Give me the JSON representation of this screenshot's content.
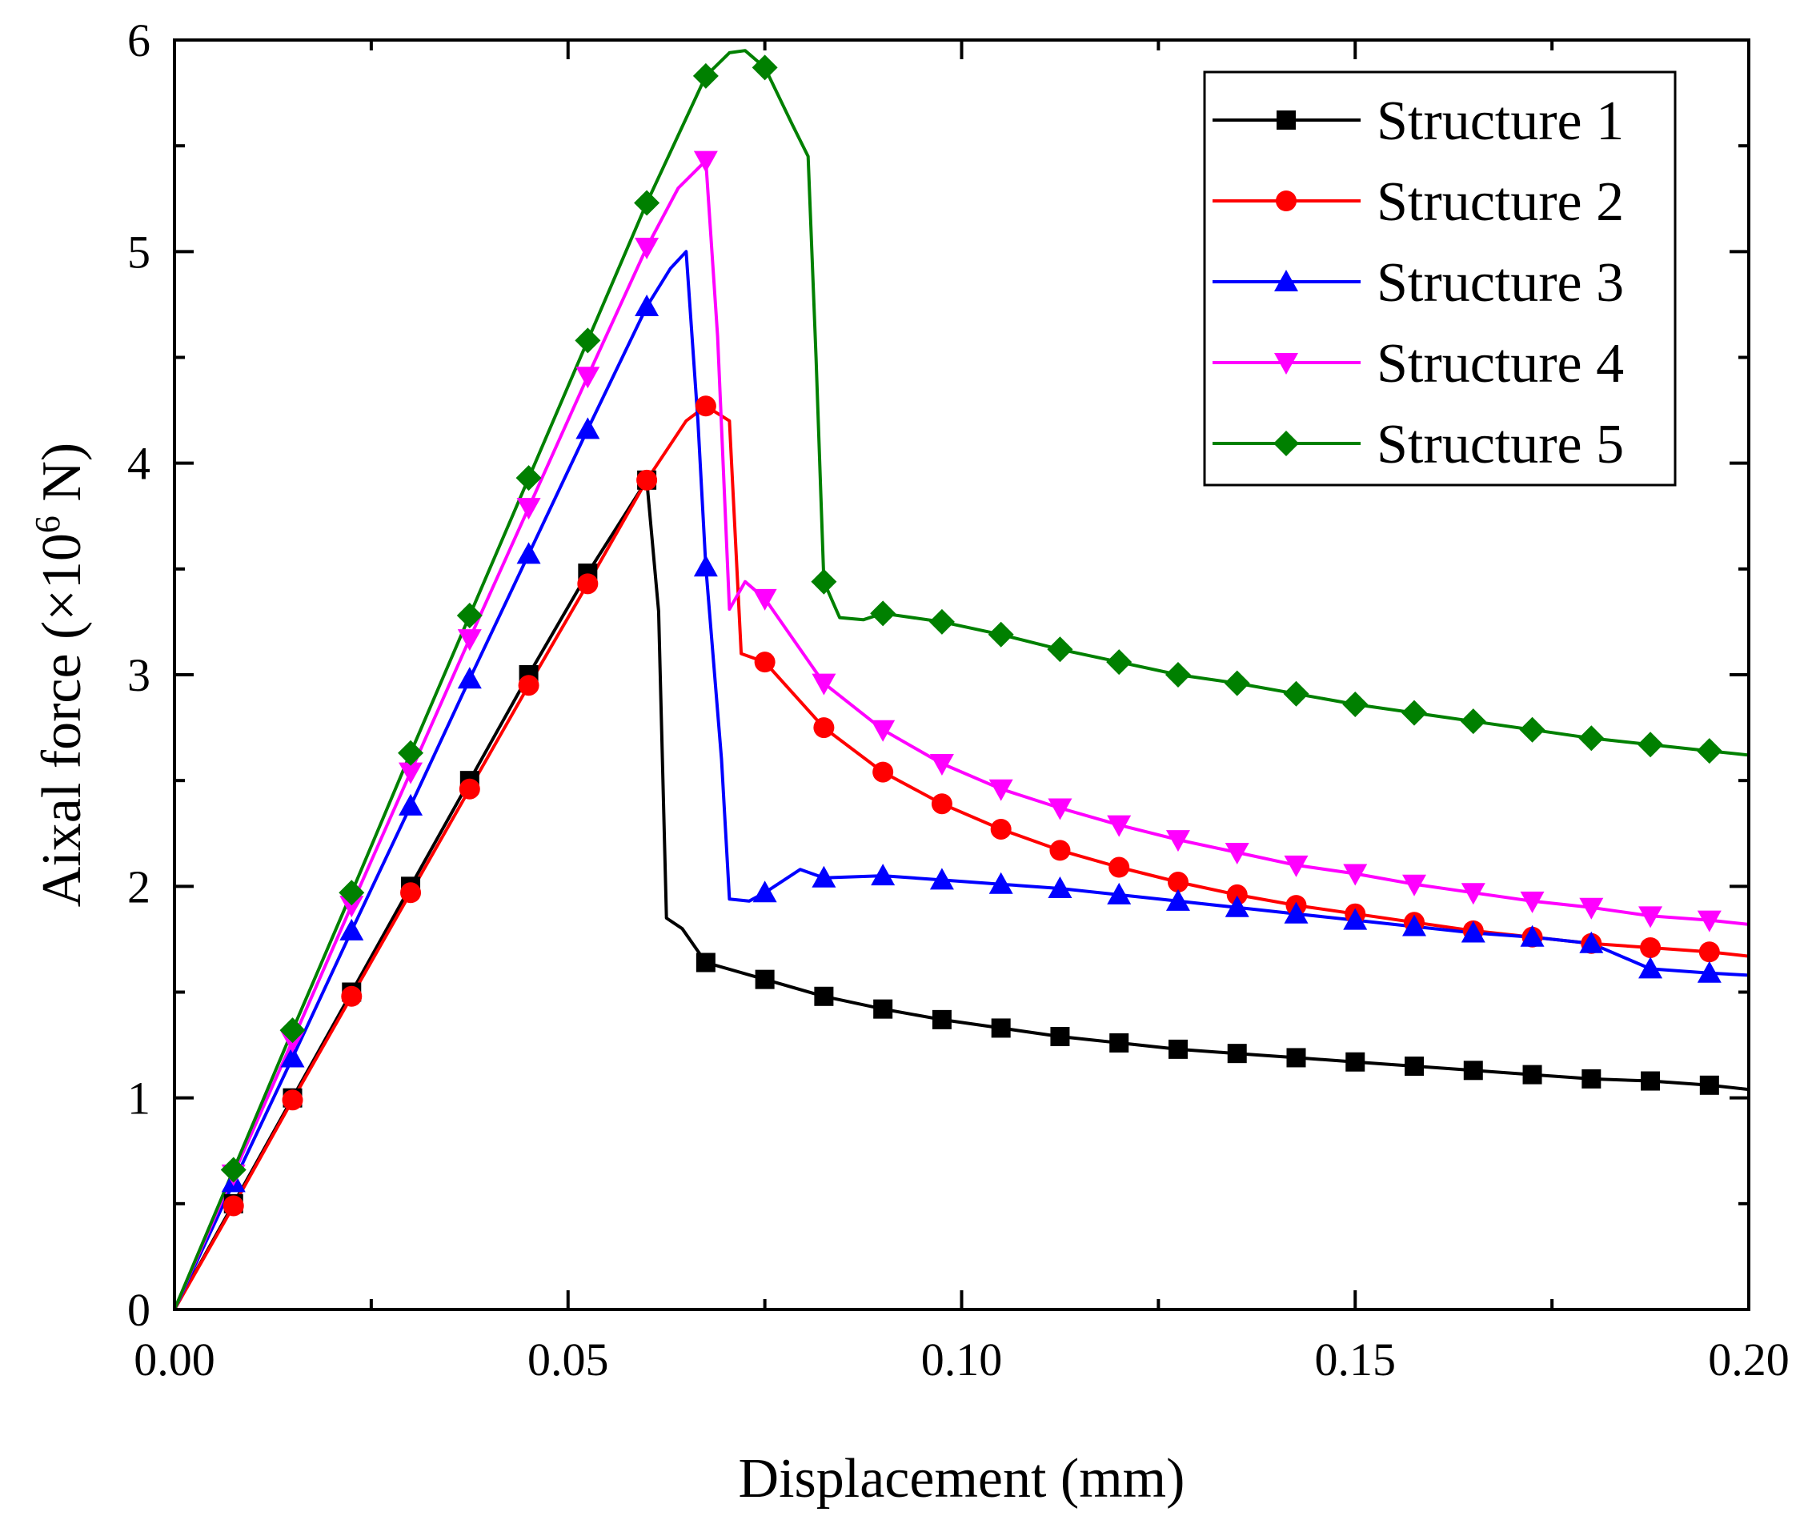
{
  "chart_data": {
    "type": "line",
    "title": "",
    "xlabel": "Displacement (mm)",
    "ylabel_prefix": "Aixal force (×10",
    "ylabel_exponent": "6",
    "ylabel_suffix": " N)",
    "xlim": [
      0,
      0.2
    ],
    "ylim": [
      0,
      6
    ],
    "xticks": [
      "0.00",
      "0.05",
      "0.10",
      "0.15",
      "0.20"
    ],
    "xtick_values": [
      0,
      0.05,
      0.1,
      0.15,
      0.2
    ],
    "yticks": [
      "0",
      "1",
      "2",
      "3",
      "4",
      "5",
      "6"
    ],
    "ytick_values": [
      0,
      1,
      2,
      3,
      4,
      5,
      6
    ],
    "grid": false,
    "legend_position": "top-right",
    "series": [
      {
        "name": "Structure 1",
        "color": "#000000",
        "marker": "square",
        "line": [
          [
            0,
            0
          ],
          [
            0.0075,
            0.5
          ],
          [
            0.015,
            1.0
          ],
          [
            0.0225,
            1.5
          ],
          [
            0.03,
            2.0
          ],
          [
            0.0375,
            2.5
          ],
          [
            0.045,
            3.0
          ],
          [
            0.0525,
            3.48
          ],
          [
            0.06,
            3.92
          ],
          [
            0.0615,
            3.3
          ],
          [
            0.0625,
            1.85
          ],
          [
            0.0645,
            1.8
          ],
          [
            0.0675,
            1.64
          ],
          [
            0.075,
            1.56
          ],
          [
            0.0825,
            1.48
          ],
          [
            0.09,
            1.42
          ],
          [
            0.0975,
            1.37
          ],
          [
            0.105,
            1.33
          ],
          [
            0.1125,
            1.29
          ],
          [
            0.12,
            1.26
          ],
          [
            0.1275,
            1.23
          ],
          [
            0.135,
            1.21
          ],
          [
            0.1425,
            1.19
          ],
          [
            0.15,
            1.17
          ],
          [
            0.1575,
            1.15
          ],
          [
            0.165,
            1.13
          ],
          [
            0.1725,
            1.11
          ],
          [
            0.18,
            1.09
          ],
          [
            0.1875,
            1.08
          ],
          [
            0.195,
            1.06
          ],
          [
            0.2,
            1.04
          ]
        ],
        "markers": [
          [
            0.0075,
            0.5
          ],
          [
            0.015,
            1.0
          ],
          [
            0.0225,
            1.5
          ],
          [
            0.03,
            2.0
          ],
          [
            0.0375,
            2.5
          ],
          [
            0.045,
            3.0
          ],
          [
            0.0525,
            3.48
          ],
          [
            0.06,
            3.92
          ],
          [
            0.0675,
            1.64
          ],
          [
            0.075,
            1.56
          ],
          [
            0.0825,
            1.48
          ],
          [
            0.09,
            1.42
          ],
          [
            0.0975,
            1.37
          ],
          [
            0.105,
            1.33
          ],
          [
            0.1125,
            1.29
          ],
          [
            0.12,
            1.26
          ],
          [
            0.1275,
            1.23
          ],
          [
            0.135,
            1.21
          ],
          [
            0.1425,
            1.19
          ],
          [
            0.15,
            1.17
          ],
          [
            0.1575,
            1.15
          ],
          [
            0.165,
            1.13
          ],
          [
            0.1725,
            1.11
          ],
          [
            0.18,
            1.09
          ],
          [
            0.1875,
            1.08
          ],
          [
            0.195,
            1.06
          ]
        ]
      },
      {
        "name": "Structure 2",
        "color": "#ff0000",
        "marker": "circle",
        "line": [
          [
            0,
            0
          ],
          [
            0.0075,
            0.49
          ],
          [
            0.015,
            0.99
          ],
          [
            0.0225,
            1.48
          ],
          [
            0.03,
            1.97
          ],
          [
            0.0375,
            2.46
          ],
          [
            0.045,
            2.95
          ],
          [
            0.0525,
            3.43
          ],
          [
            0.06,
            3.92
          ],
          [
            0.065,
            4.2
          ],
          [
            0.0675,
            4.27
          ],
          [
            0.0705,
            4.2
          ],
          [
            0.072,
            3.1
          ],
          [
            0.075,
            3.06
          ],
          [
            0.0825,
            2.75
          ],
          [
            0.09,
            2.54
          ],
          [
            0.0975,
            2.39
          ],
          [
            0.105,
            2.27
          ],
          [
            0.1125,
            2.17
          ],
          [
            0.12,
            2.09
          ],
          [
            0.1275,
            2.02
          ],
          [
            0.135,
            1.96
          ],
          [
            0.1425,
            1.91
          ],
          [
            0.15,
            1.87
          ],
          [
            0.1575,
            1.83
          ],
          [
            0.165,
            1.79
          ],
          [
            0.1725,
            1.76
          ],
          [
            0.18,
            1.73
          ],
          [
            0.1875,
            1.71
          ],
          [
            0.195,
            1.69
          ],
          [
            0.2,
            1.67
          ]
        ],
        "markers": [
          [
            0.0075,
            0.49
          ],
          [
            0.015,
            0.99
          ],
          [
            0.0225,
            1.48
          ],
          [
            0.03,
            1.97
          ],
          [
            0.0375,
            2.46
          ],
          [
            0.045,
            2.95
          ],
          [
            0.0525,
            3.43
          ],
          [
            0.06,
            3.92
          ],
          [
            0.0675,
            4.27
          ],
          [
            0.075,
            3.06
          ],
          [
            0.0825,
            2.75
          ],
          [
            0.09,
            2.54
          ],
          [
            0.0975,
            2.39
          ],
          [
            0.105,
            2.27
          ],
          [
            0.1125,
            2.17
          ],
          [
            0.12,
            2.09
          ],
          [
            0.1275,
            2.02
          ],
          [
            0.135,
            1.96
          ],
          [
            0.1425,
            1.91
          ],
          [
            0.15,
            1.87
          ],
          [
            0.1575,
            1.83
          ],
          [
            0.165,
            1.79
          ],
          [
            0.1725,
            1.76
          ],
          [
            0.18,
            1.73
          ],
          [
            0.1875,
            1.71
          ],
          [
            0.195,
            1.69
          ]
        ]
      },
      {
        "name": "Structure 3",
        "color": "#0000ff",
        "marker": "triangle-up",
        "line": [
          [
            0,
            0
          ],
          [
            0.0075,
            0.6
          ],
          [
            0.015,
            1.19
          ],
          [
            0.0225,
            1.79
          ],
          [
            0.03,
            2.38
          ],
          [
            0.0375,
            2.98
          ],
          [
            0.045,
            3.57
          ],
          [
            0.0525,
            4.16
          ],
          [
            0.06,
            4.74
          ],
          [
            0.063,
            4.92
          ],
          [
            0.065,
            5.0
          ],
          [
            0.0665,
            4.2
          ],
          [
            0.0675,
            3.51
          ],
          [
            0.0695,
            2.6
          ],
          [
            0.0705,
            1.94
          ],
          [
            0.073,
            1.93
          ],
          [
            0.075,
            1.97
          ],
          [
            0.0795,
            2.08
          ],
          [
            0.0825,
            2.04
          ],
          [
            0.09,
            2.05
          ],
          [
            0.0975,
            2.03
          ],
          [
            0.105,
            2.01
          ],
          [
            0.1125,
            1.99
          ],
          [
            0.12,
            1.96
          ],
          [
            0.1275,
            1.93
          ],
          [
            0.135,
            1.9
          ],
          [
            0.1425,
            1.87
          ],
          [
            0.15,
            1.84
          ],
          [
            0.1575,
            1.81
          ],
          [
            0.165,
            1.78
          ],
          [
            0.1725,
            1.76
          ],
          [
            0.18,
            1.73
          ],
          [
            0.1875,
            1.61
          ],
          [
            0.195,
            1.59
          ],
          [
            0.2,
            1.58
          ]
        ],
        "markers": [
          [
            0.0075,
            0.6
          ],
          [
            0.015,
            1.19
          ],
          [
            0.0225,
            1.79
          ],
          [
            0.03,
            2.38
          ],
          [
            0.0375,
            2.98
          ],
          [
            0.045,
            3.57
          ],
          [
            0.0525,
            4.16
          ],
          [
            0.06,
            4.74
          ],
          [
            0.0675,
            3.51
          ],
          [
            0.075,
            1.97
          ],
          [
            0.0825,
            2.04
          ],
          [
            0.09,
            2.05
          ],
          [
            0.0975,
            2.03
          ],
          [
            0.105,
            2.01
          ],
          [
            0.1125,
            1.99
          ],
          [
            0.12,
            1.96
          ],
          [
            0.1275,
            1.93
          ],
          [
            0.135,
            1.9
          ],
          [
            0.1425,
            1.87
          ],
          [
            0.15,
            1.84
          ],
          [
            0.1575,
            1.81
          ],
          [
            0.165,
            1.78
          ],
          [
            0.1725,
            1.76
          ],
          [
            0.18,
            1.73
          ],
          [
            0.1875,
            1.61
          ],
          [
            0.195,
            1.59
          ]
        ]
      },
      {
        "name": "Structure 4",
        "color": "#ff00ff",
        "marker": "triangle-down",
        "line": [
          [
            0,
            0
          ],
          [
            0.0075,
            0.64
          ],
          [
            0.015,
            1.27
          ],
          [
            0.0225,
            1.91
          ],
          [
            0.03,
            2.54
          ],
          [
            0.0375,
            3.17
          ],
          [
            0.045,
            3.79
          ],
          [
            0.0525,
            4.41
          ],
          [
            0.06,
            5.02
          ],
          [
            0.064,
            5.3
          ],
          [
            0.0675,
            5.43
          ],
          [
            0.069,
            4.6
          ],
          [
            0.0705,
            3.31
          ],
          [
            0.0725,
            3.44
          ],
          [
            0.075,
            3.36
          ],
          [
            0.0825,
            2.96
          ],
          [
            0.09,
            2.74
          ],
          [
            0.0975,
            2.58
          ],
          [
            0.105,
            2.46
          ],
          [
            0.1125,
            2.37
          ],
          [
            0.12,
            2.29
          ],
          [
            0.1275,
            2.22
          ],
          [
            0.135,
            2.16
          ],
          [
            0.1425,
            2.1
          ],
          [
            0.15,
            2.06
          ],
          [
            0.1575,
            2.01
          ],
          [
            0.165,
            1.97
          ],
          [
            0.1725,
            1.93
          ],
          [
            0.18,
            1.9
          ],
          [
            0.1875,
            1.86
          ],
          [
            0.195,
            1.84
          ],
          [
            0.2,
            1.82
          ]
        ],
        "markers": [
          [
            0.0075,
            0.64
          ],
          [
            0.015,
            1.27
          ],
          [
            0.0225,
            1.91
          ],
          [
            0.03,
            2.54
          ],
          [
            0.0375,
            3.17
          ],
          [
            0.045,
            3.79
          ],
          [
            0.0525,
            4.41
          ],
          [
            0.06,
            5.02
          ],
          [
            0.0675,
            5.43
          ],
          [
            0.075,
            3.36
          ],
          [
            0.0825,
            2.96
          ],
          [
            0.09,
            2.74
          ],
          [
            0.0975,
            2.58
          ],
          [
            0.105,
            2.46
          ],
          [
            0.1125,
            2.37
          ],
          [
            0.12,
            2.29
          ],
          [
            0.1275,
            2.22
          ],
          [
            0.135,
            2.16
          ],
          [
            0.1425,
            2.1
          ],
          [
            0.15,
            2.06
          ],
          [
            0.1575,
            2.01
          ],
          [
            0.165,
            1.97
          ],
          [
            0.1725,
            1.93
          ],
          [
            0.18,
            1.9
          ],
          [
            0.1875,
            1.86
          ],
          [
            0.195,
            1.84
          ]
        ]
      },
      {
        "name": "Structure 5",
        "color": "#008000",
        "marker": "diamond",
        "line": [
          [
            0,
            0
          ],
          [
            0.0075,
            0.66
          ],
          [
            0.015,
            1.32
          ],
          [
            0.0225,
            1.97
          ],
          [
            0.03,
            2.63
          ],
          [
            0.0375,
            3.28
          ],
          [
            0.045,
            3.93
          ],
          [
            0.0525,
            4.58
          ],
          [
            0.06,
            5.23
          ],
          [
            0.0675,
            5.83
          ],
          [
            0.0705,
            5.94
          ],
          [
            0.0725,
            5.95
          ],
          [
            0.075,
            5.87
          ],
          [
            0.0785,
            5.6
          ],
          [
            0.0805,
            5.45
          ],
          [
            0.0815,
            4.5
          ],
          [
            0.0825,
            3.44
          ],
          [
            0.0845,
            3.27
          ],
          [
            0.0875,
            3.26
          ],
          [
            0.09,
            3.29
          ],
          [
            0.0975,
            3.25
          ],
          [
            0.105,
            3.19
          ],
          [
            0.1125,
            3.12
          ],
          [
            0.12,
            3.06
          ],
          [
            0.1275,
            3.0
          ],
          [
            0.135,
            2.96
          ],
          [
            0.1425,
            2.91
          ],
          [
            0.15,
            2.86
          ],
          [
            0.1575,
            2.82
          ],
          [
            0.165,
            2.78
          ],
          [
            0.1725,
            2.74
          ],
          [
            0.18,
            2.7
          ],
          [
            0.1875,
            2.67
          ],
          [
            0.195,
            2.64
          ],
          [
            0.2,
            2.62
          ]
        ],
        "markers": [
          [
            0.0075,
            0.66
          ],
          [
            0.015,
            1.32
          ],
          [
            0.0225,
            1.97
          ],
          [
            0.03,
            2.63
          ],
          [
            0.0375,
            3.28
          ],
          [
            0.045,
            3.93
          ],
          [
            0.0525,
            4.58
          ],
          [
            0.06,
            5.23
          ],
          [
            0.0675,
            5.83
          ],
          [
            0.075,
            5.87
          ],
          [
            0.0825,
            3.44
          ],
          [
            0.09,
            3.29
          ],
          [
            0.0975,
            3.25
          ],
          [
            0.105,
            3.19
          ],
          [
            0.1125,
            3.12
          ],
          [
            0.12,
            3.06
          ],
          [
            0.1275,
            3.0
          ],
          [
            0.135,
            2.96
          ],
          [
            0.1425,
            2.91
          ],
          [
            0.15,
            2.86
          ],
          [
            0.1575,
            2.82
          ],
          [
            0.165,
            2.78
          ],
          [
            0.1725,
            2.74
          ],
          [
            0.18,
            2.7
          ],
          [
            0.1875,
            2.67
          ],
          [
            0.195,
            2.64
          ]
        ]
      }
    ]
  }
}
